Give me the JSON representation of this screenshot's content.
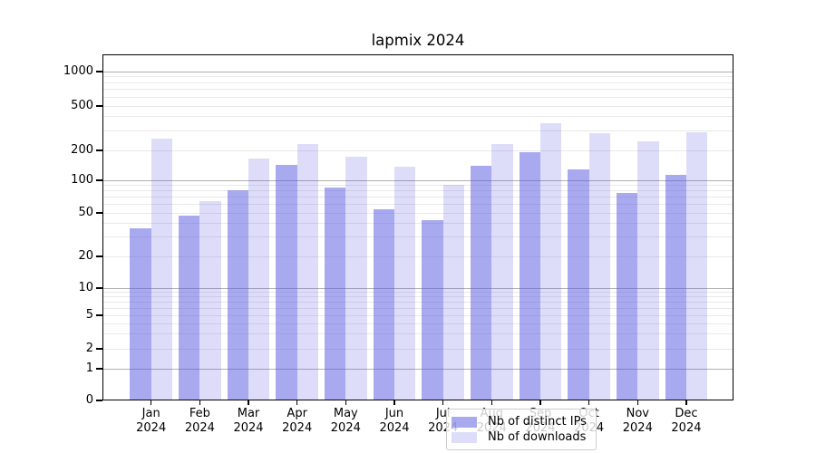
{
  "title": "lapmix 2024",
  "colors": {
    "bar_distinct_ips": "rgba(83,83,225,0.5)",
    "bar_downloads": "rgba(83,83,225,0.2)",
    "grid_major": "#b0b0b0",
    "grid_minor": "#e9e9e9",
    "spine": "#000000",
    "legend_border": "#cccccc",
    "legend_bg": "rgba(255,255,255,0.8)"
  },
  "chart_data": {
    "type": "bar",
    "title": "lapmix 2024",
    "xlabel": "",
    "ylabel": "",
    "yscale": "symlog",
    "ylim": [
      0,
      1400
    ],
    "yticks": [
      0,
      1,
      2,
      5,
      10,
      20,
      50,
      100,
      200,
      500,
      1000
    ],
    "grid_major_values": [
      1,
      10,
      100,
      1000
    ],
    "grid_minor_values": [
      2,
      3,
      4,
      5,
      6,
      7,
      8,
      9,
      20,
      30,
      40,
      50,
      60,
      70,
      80,
      90,
      200,
      300,
      400,
      500,
      600,
      700,
      800,
      900
    ],
    "categories_month": [
      "Jan",
      "Feb",
      "Mar",
      "Apr",
      "May",
      "Jun",
      "Jul",
      "Aug",
      "Sep",
      "Oct",
      "Nov",
      "Dec"
    ],
    "categories_year": "2024",
    "series": [
      {
        "name": "Nb of distinct IPs",
        "color": "rgba(83,83,225,0.5)",
        "values": [
          36,
          47,
          81,
          144,
          86,
          54,
          43,
          140,
          193,
          130,
          77,
          114
        ]
      },
      {
        "name": "Nb of downloads",
        "color": "rgba(83,83,225,0.2)",
        "values": [
          256,
          64,
          165,
          227,
          174,
          136,
          90,
          227,
          350,
          287,
          242,
          292
        ]
      }
    ],
    "legend_position": "lower center",
    "grid": "horizontal log-decade majors with minors"
  }
}
